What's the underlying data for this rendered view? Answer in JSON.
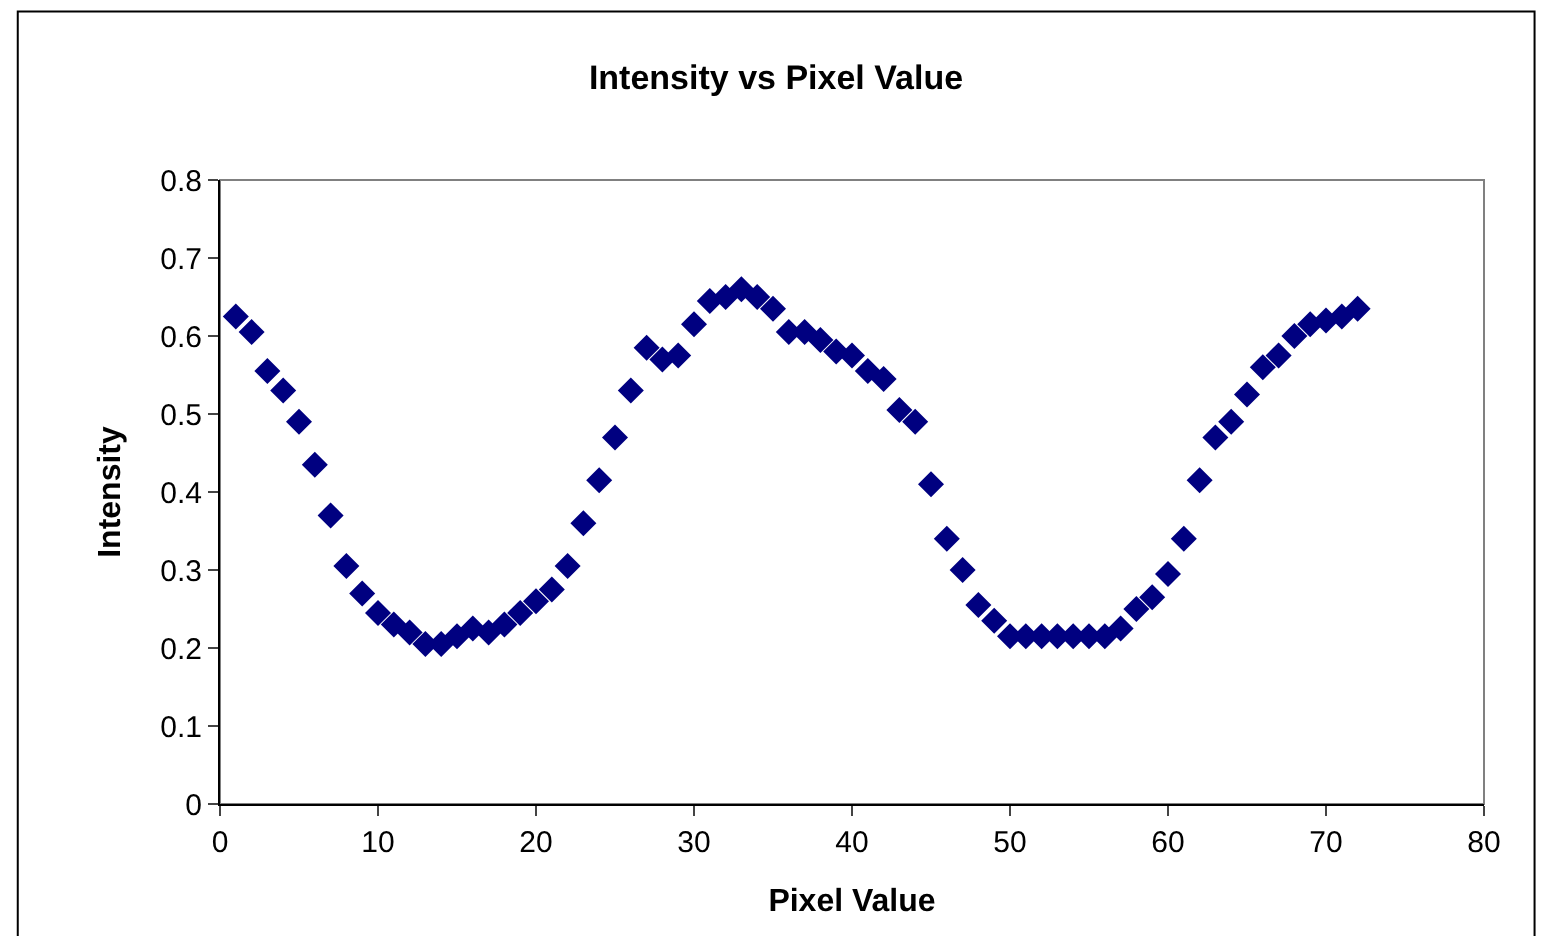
{
  "chart_data": {
    "type": "scatter",
    "title": "Intensity vs Pixel Value",
    "xlabel": "Pixel Value",
    "ylabel": "Intensity",
    "x": [
      1,
      2,
      3,
      4,
      5,
      6,
      7,
      8,
      9,
      10,
      11,
      12,
      13,
      14,
      15,
      16,
      17,
      18,
      19,
      20,
      21,
      22,
      23,
      24,
      25,
      26,
      27,
      28,
      29,
      30,
      31,
      32,
      33,
      34,
      35,
      36,
      37,
      38,
      39,
      40,
      41,
      42,
      43,
      44,
      45,
      46,
      47,
      48,
      49,
      50,
      51,
      52,
      53,
      54,
      55,
      56,
      57,
      58,
      59,
      60,
      61,
      62,
      63,
      64,
      65,
      66,
      67,
      68,
      69,
      70,
      71,
      72
    ],
    "series": [
      {
        "color": "#000080",
        "values": [
          0.625,
          0.605,
          0.555,
          0.53,
          0.49,
          0.435,
          0.37,
          0.305,
          0.27,
          0.245,
          0.23,
          0.22,
          0.205,
          0.205,
          0.215,
          0.225,
          0.22,
          0.23,
          0.245,
          0.26,
          0.275,
          0.305,
          0.36,
          0.415,
          0.47,
          0.53,
          0.585,
          0.57,
          0.575,
          0.615,
          0.645,
          0.65,
          0.66,
          0.65,
          0.635,
          0.605,
          0.605,
          0.595,
          0.58,
          0.575,
          0.555,
          0.545,
          0.505,
          0.49,
          0.41,
          0.34,
          0.3,
          0.255,
          0.235,
          0.215,
          0.215,
          0.215,
          0.215,
          0.215,
          0.215,
          0.215,
          0.225,
          0.25,
          0.265,
          0.295,
          0.34,
          0.415,
          0.47,
          0.49,
          0.525,
          0.56,
          0.575,
          0.6,
          0.615,
          0.62,
          0.625,
          0.635
        ]
      }
    ],
    "xlim": [
      0,
      80
    ],
    "xticks": [
      0,
      10,
      20,
      30,
      40,
      50,
      60,
      70,
      80
    ],
    "ylim": [
      0,
      0.8
    ],
    "yticks": [
      0,
      0.1,
      0.2,
      0.3,
      0.4,
      0.5,
      0.6,
      0.7,
      0.8
    ],
    "marker": "diamond",
    "grid": false,
    "legend": false
  }
}
